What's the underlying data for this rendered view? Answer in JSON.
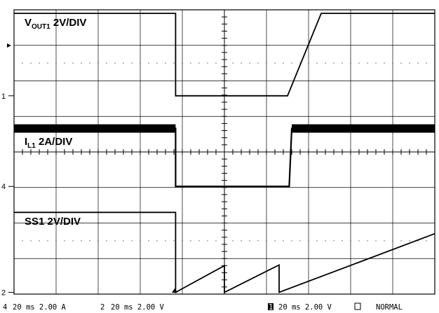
{
  "chart_data": {
    "type": "line",
    "title": "",
    "xlabel": "",
    "ylabel": "",
    "divisions": {
      "x": 10,
      "y": 8
    },
    "grid": true,
    "time_per_div_ms": 20,
    "xlim_div": [
      0,
      10
    ],
    "ylim_div": [
      0,
      8
    ],
    "series": [
      {
        "name": "V_OUT1 2V/DIV",
        "label_main": "V",
        "label_sub": "OUT1",
        "label_rest": " 2V/DIV",
        "channel": "1",
        "ground_div": 5.58,
        "points": [
          [
            0,
            7.9
          ],
          [
            3.84,
            7.9
          ],
          [
            3.84,
            5.58
          ],
          [
            6.5,
            5.58
          ],
          [
            7.3,
            7.9
          ],
          [
            10,
            7.9
          ]
        ],
        "thick": false
      },
      {
        "name": "I_L1 2A/DIV",
        "label_main": "I",
        "label_sub": "L1",
        "label_rest": " 2A/DIV",
        "channel": "4",
        "ground_div": 3.03,
        "points": [
          [
            0,
            4.66
          ],
          [
            3.84,
            4.66
          ],
          [
            3.84,
            3.03
          ],
          [
            6.54,
            3.03
          ],
          [
            6.6,
            4.66
          ],
          [
            10,
            4.66
          ]
        ],
        "thick": true
      },
      {
        "name": "SS1 2V/DIV",
        "label_main": "SS1 2V/DIV",
        "label_sub": "",
        "label_rest": "",
        "channel": "2",
        "ground_div": 0.05,
        "points": [
          [
            0,
            2.3
          ],
          [
            3.84,
            2.3
          ],
          [
            3.84,
            0.05
          ],
          [
            5.0,
            0.8
          ],
          [
            5.0,
            0.05
          ],
          [
            6.3,
            0.82
          ],
          [
            6.3,
            0.05
          ],
          [
            10,
            1.7
          ]
        ],
        "thick": false
      }
    ]
  },
  "status_bar": {
    "ch4": "20 ms 2.00 A",
    "ch4_num": "4",
    "ch2": "20 ms 2.00 V",
    "ch2_num": "2",
    "ch1": "20 ms 2.00 V",
    "ch1_num": "1",
    "mode": "NORMAL"
  }
}
